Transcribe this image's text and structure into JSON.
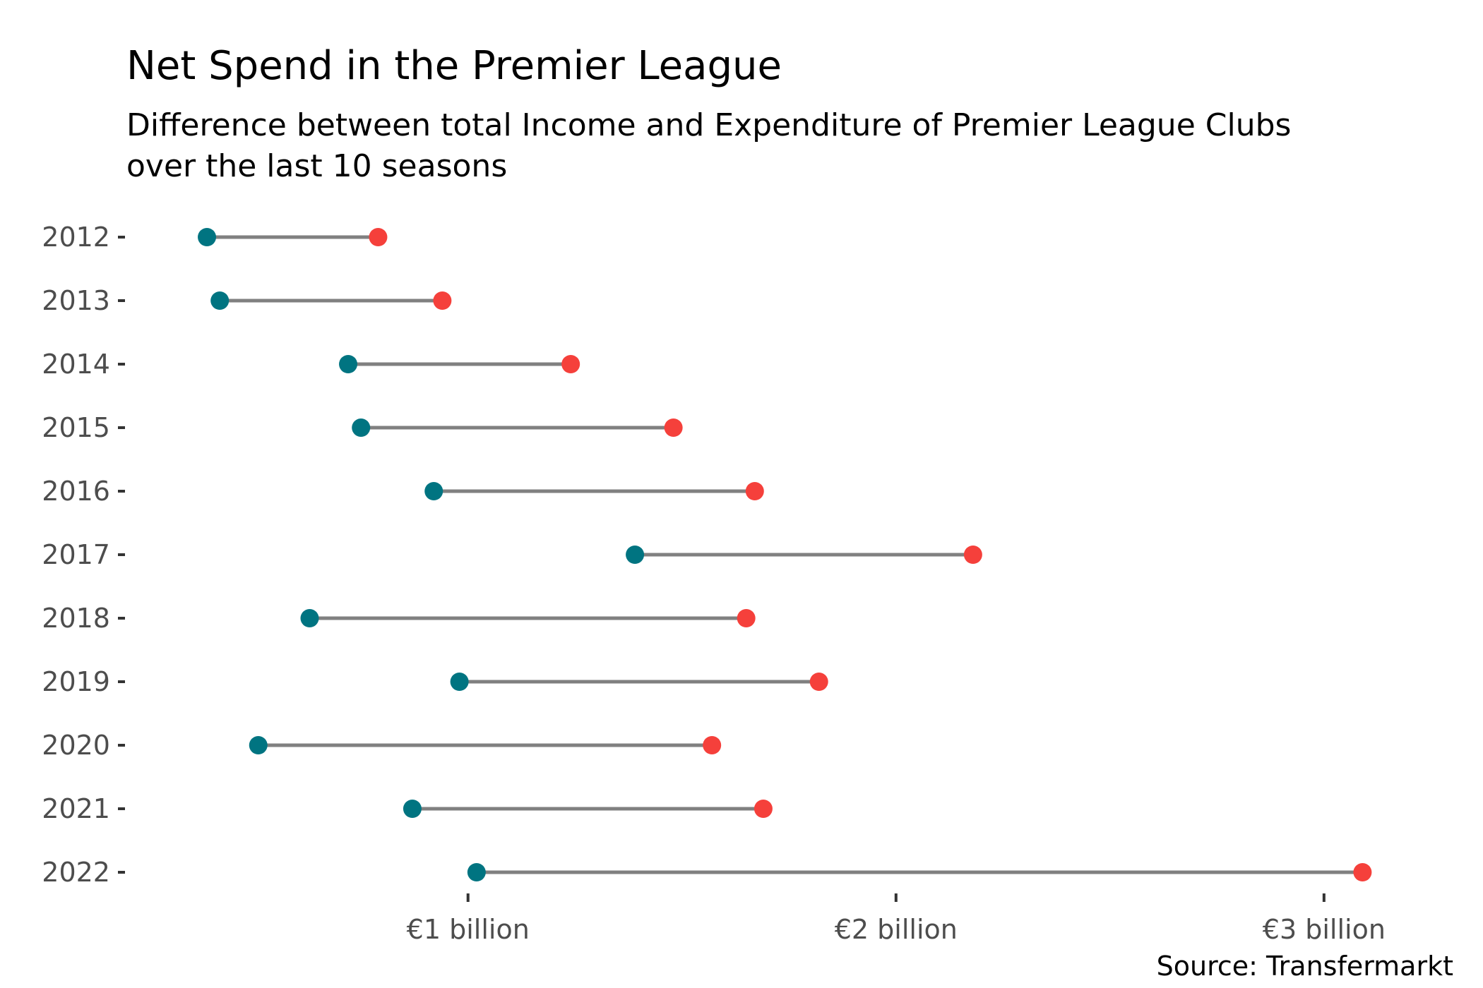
{
  "chart_data": {
    "type": "dumbbell",
    "title": "Net Spend in the Premier League",
    "subtitle_lines": [
      "Difference between total Income and Expenditure of Premier League Clubs",
      "over the last 10 seasons"
    ],
    "caption": "Source: Transfermarkt",
    "xlabel": "",
    "ylabel": "",
    "x_unit": "€ billion",
    "x_ticks": [
      {
        "value": 1,
        "label": "€1 billion"
      },
      {
        "value": 2,
        "label": "€2 billion"
      },
      {
        "value": 3,
        "label": "€3 billion"
      }
    ],
    "xlim": [
      0.22,
      3.19
    ],
    "grid": false,
    "categories": [
      "2012",
      "2013",
      "2014",
      "2015",
      "2016",
      "2017",
      "2018",
      "2019",
      "2020",
      "2021",
      "2022"
    ],
    "series": [
      {
        "color": "#007481",
        "values": [
          0.39,
          0.42,
          0.72,
          0.75,
          0.92,
          1.39,
          0.63,
          0.98,
          0.51,
          0.87,
          1.02
        ]
      },
      {
        "color": "#f5403b",
        "values": [
          0.79,
          0.94,
          1.24,
          1.48,
          1.67,
          2.18,
          1.65,
          1.82,
          1.57,
          1.69,
          3.09
        ]
      }
    ],
    "segment_color": "#808080"
  }
}
